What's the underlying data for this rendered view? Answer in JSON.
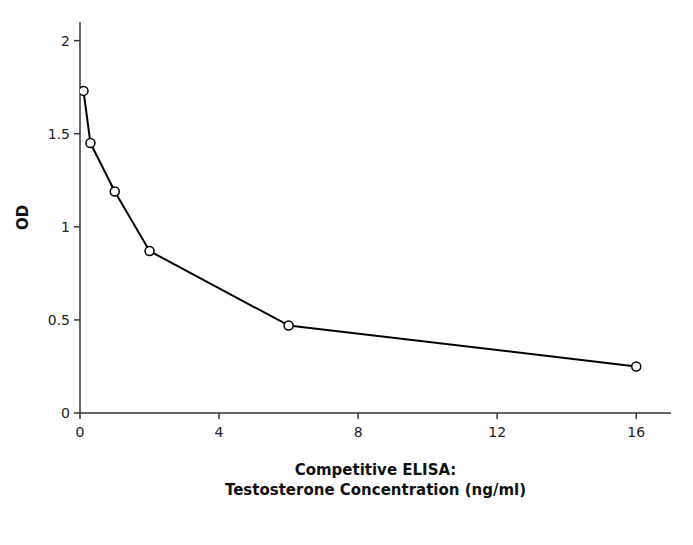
{
  "chart_data": {
    "type": "line",
    "x": [
      0.1,
      0.3,
      1.0,
      2.0,
      6.0,
      16.0
    ],
    "values": [
      1.73,
      1.45,
      1.19,
      0.87,
      0.47,
      0.25
    ],
    "xlabel": "Competitive ELISA:\nTestosterone Concentration (ng/ml)",
    "ylabel": "OD",
    "xlim": [
      0,
      17
    ],
    "ylim": [
      0,
      2.1
    ],
    "xticks": [
      0,
      4,
      8,
      12,
      16
    ],
    "yticks": [
      0,
      0.5,
      1,
      1.5,
      2
    ],
    "color": "#000000",
    "marker": "circle",
    "grid": false
  }
}
